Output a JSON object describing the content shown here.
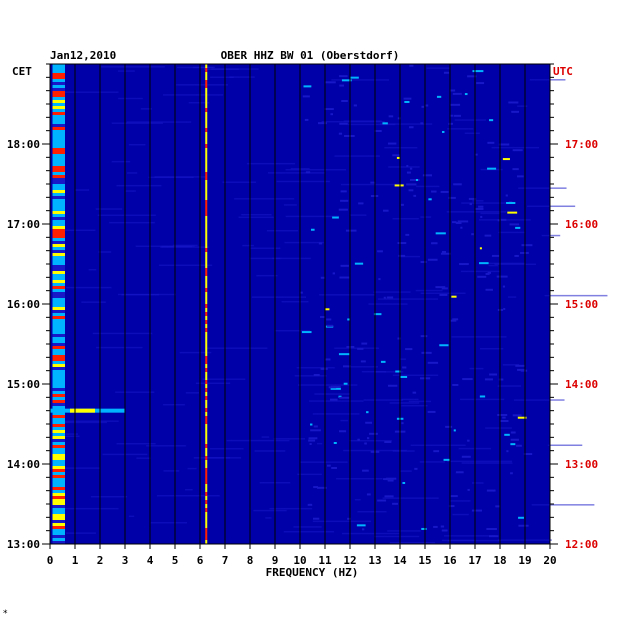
{
  "chart_data": {
    "type": "heatmap",
    "date": "Jan12,2010",
    "title": "OBER HHZ BW 01 (Oberstdorf)",
    "left_axis_label": "CET",
    "right_axis_label": "UTC",
    "xlabel": "FREQUENCY (HZ)",
    "xlim": [
      0,
      20
    ],
    "x_ticks": [
      "0",
      "1",
      "2",
      "3",
      "4",
      "5",
      "6",
      "7",
      "8",
      "9",
      "10",
      "11",
      "12",
      "13",
      "14",
      "15",
      "16",
      "17",
      "18",
      "19",
      "20"
    ],
    "time_range_cet": [
      "13:00",
      "19:00"
    ],
    "cet_ticks": [
      "13:00",
      "14:00",
      "15:00",
      "16:00",
      "17:00",
      "18:00"
    ],
    "utc_ticks": [
      "12:00",
      "13:00",
      "14:00",
      "15:00",
      "16:00",
      "17:00"
    ],
    "grid": true,
    "colors": {
      "background": "#0000a8",
      "low": "#1818c8",
      "mid": "#00b4ff",
      "high": "#ffff00",
      "peak": "#ff2000",
      "frame": "#000000",
      "utc_text": "#dd0000",
      "cet_text": "#000000"
    },
    "features": [
      {
        "kind": "low-frequency energy band",
        "freq_hz": [
          0.1,
          0.6
        ],
        "time_cet": [
          "13:00",
          "19:00"
        ],
        "intensity": "high"
      },
      {
        "kind": "narrowband line",
        "freq_hz": 6.25,
        "time_cet": [
          "13:00",
          "19:00"
        ],
        "intensity": "high"
      },
      {
        "kind": "broadband burst",
        "freq_hz": [
          0,
          3.0
        ],
        "time_cet": "14:40",
        "intensity": "high"
      },
      {
        "kind": "scattered high-frequency noise",
        "freq_hz": [
          10,
          19
        ],
        "time_cet": [
          "13:00",
          "19:00"
        ],
        "intensity": "medium"
      }
    ],
    "footer_mark": "*"
  }
}
